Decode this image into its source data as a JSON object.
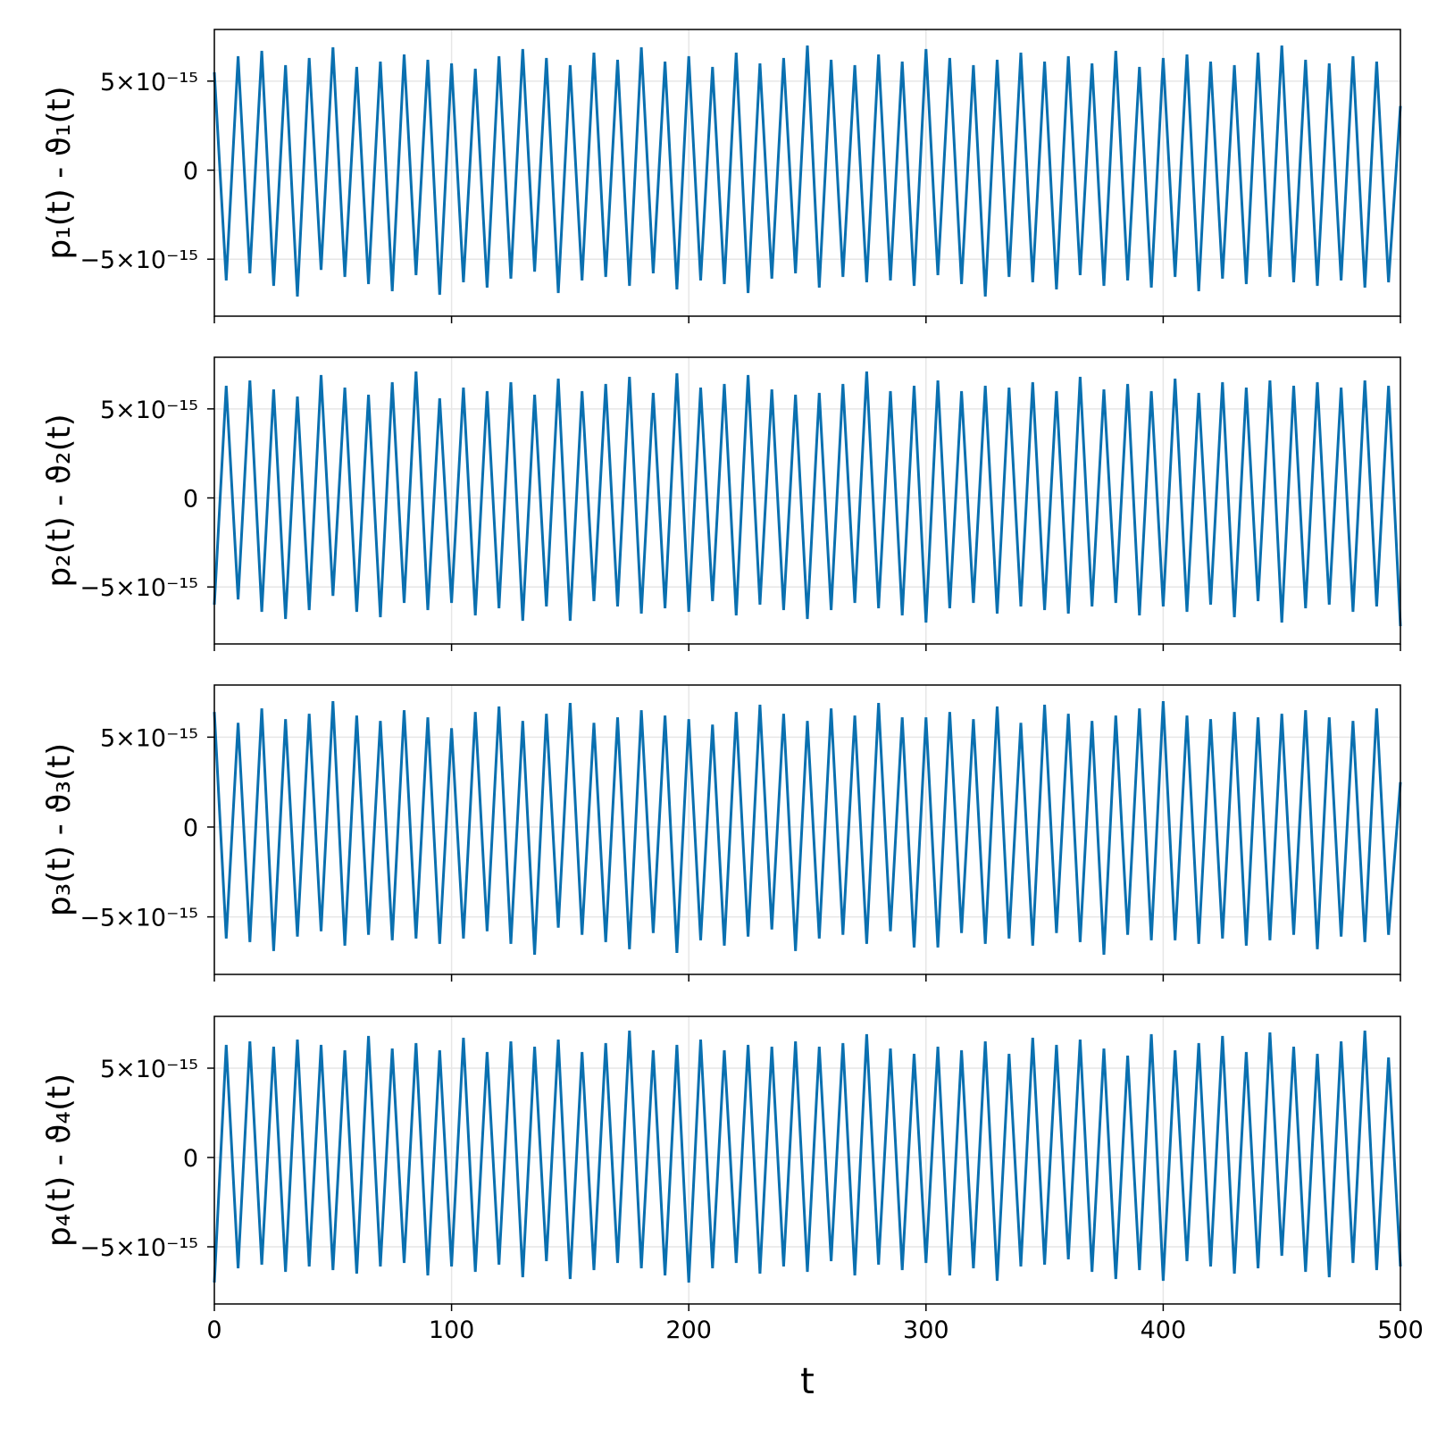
{
  "chart_data": [
    {
      "type": "line",
      "ylabel": "p₁(t) - ϑ₁(t)",
      "color": "#0a70b0",
      "xlim": [
        0,
        500
      ],
      "xticks": [
        0,
        100,
        200,
        300,
        400,
        500
      ],
      "ylim": [
        -8.2e-15,
        7.9e-15
      ],
      "yticks": [
        {
          "value": -5e-15,
          "label": "−5×10⁻¹⁵"
        },
        0,
        {
          "value": 5e-15,
          "label": "5×10⁻¹⁵"
        }
      ],
      "grid": true,
      "x": [
        0,
        5,
        10,
        15,
        20,
        25,
        30,
        35,
        40,
        45,
        50,
        55,
        60,
        65,
        70,
        75,
        80,
        85,
        90,
        95,
        100,
        105,
        110,
        115,
        120,
        125,
        130,
        135,
        140,
        145,
        150,
        155,
        160,
        165,
        170,
        175,
        180,
        185,
        190,
        195,
        200,
        205,
        210,
        215,
        220,
        225,
        230,
        235,
        240,
        245,
        250,
        255,
        260,
        265,
        270,
        275,
        280,
        285,
        290,
        295,
        300,
        305,
        310,
        315,
        320,
        325,
        330,
        335,
        340,
        345,
        350,
        355,
        360,
        365,
        370,
        375,
        380,
        385,
        390,
        395,
        400,
        405,
        410,
        415,
        420,
        425,
        430,
        435,
        440,
        445,
        450,
        455,
        460,
        465,
        470,
        475,
        480,
        485,
        490,
        495,
        500
      ],
      "values": [
        5.5e-15,
        -6.2e-15,
        6.4e-15,
        -5.8e-15,
        6.7e-15,
        -6.5e-15,
        5.9e-15,
        -7.1e-15,
        6.3e-15,
        -5.6e-15,
        6.9e-15,
        -6e-15,
        5.8e-15,
        -6.4e-15,
        6.1e-15,
        -6.8e-15,
        6.5e-15,
        -5.9e-15,
        6.2e-15,
        -7e-15,
        6e-15,
        -6.3e-15,
        5.7e-15,
        -6.6e-15,
        6.4e-15,
        -6.1e-15,
        6.8e-15,
        -5.7e-15,
        6.3e-15,
        -6.9e-15,
        5.9e-15,
        -6.2e-15,
        6.6e-15,
        -6e-15,
        6.2e-15,
        -6.5e-15,
        6.9e-15,
        -5.8e-15,
        6.1e-15,
        -6.7e-15,
        6.4e-15,
        -6.2e-15,
        5.8e-15,
        -6.4e-15,
        6.6e-15,
        -6.9e-15,
        6e-15,
        -6.1e-15,
        6.3e-15,
        -5.8e-15,
        7e-15,
        -6.6e-15,
        6.2e-15,
        -6e-15,
        5.9e-15,
        -6.3e-15,
        6.5e-15,
        -6.2e-15,
        6.1e-15,
        -6.5e-15,
        6.8e-15,
        -5.9e-15,
        6.3e-15,
        -6.4e-15,
        5.9e-15,
        -7.1e-15,
        6.2e-15,
        -6e-15,
        6.6e-15,
        -6.3e-15,
        6.1e-15,
        -6.7e-15,
        6.4e-15,
        -5.9e-15,
        6e-15,
        -6.5e-15,
        6.7e-15,
        -6.2e-15,
        5.8e-15,
        -6.6e-15,
        6.3e-15,
        -6e-15,
        6.5e-15,
        -6.8e-15,
        6.1e-15,
        -6.1e-15,
        5.9e-15,
        -6.4e-15,
        6.6e-15,
        -6e-15,
        7e-15,
        -6.3e-15,
        6.2e-15,
        -6.5e-15,
        6e-15,
        -6.2e-15,
        6.4e-15,
        -6.6e-15,
        6.1e-15,
        -6.3e-15,
        3.6e-15
      ]
    },
    {
      "type": "line",
      "ylabel": "p₂(t) - ϑ₂(t)",
      "color": "#0a70b0",
      "xlim": [
        0,
        500
      ],
      "xticks": [
        0,
        100,
        200,
        300,
        400,
        500
      ],
      "ylim": [
        -8.2e-15,
        7.9e-15
      ],
      "yticks": [
        {
          "value": -5e-15,
          "label": "−5×10⁻¹⁵"
        },
        0,
        {
          "value": 5e-15,
          "label": "5×10⁻¹⁵"
        }
      ],
      "grid": true,
      "x": [
        0,
        5,
        10,
        15,
        20,
        25,
        30,
        35,
        40,
        45,
        50,
        55,
        60,
        65,
        70,
        75,
        80,
        85,
        90,
        95,
        100,
        105,
        110,
        115,
        120,
        125,
        130,
        135,
        140,
        145,
        150,
        155,
        160,
        165,
        170,
        175,
        180,
        185,
        190,
        195,
        200,
        205,
        210,
        215,
        220,
        225,
        230,
        235,
        240,
        245,
        250,
        255,
        260,
        265,
        270,
        275,
        280,
        285,
        290,
        295,
        300,
        305,
        310,
        315,
        320,
        325,
        330,
        335,
        340,
        345,
        350,
        355,
        360,
        365,
        370,
        375,
        380,
        385,
        390,
        395,
        400,
        405,
        410,
        415,
        420,
        425,
        430,
        435,
        440,
        445,
        450,
        455,
        460,
        465,
        470,
        475,
        480,
        485,
        490,
        495,
        500
      ],
      "values": [
        -6e-15,
        6.3e-15,
        -5.7e-15,
        6.6e-15,
        -6.4e-15,
        6.1e-15,
        -6.8e-15,
        5.7e-15,
        -6.3e-15,
        6.9e-15,
        -5.5e-15,
        6.2e-15,
        -6.4e-15,
        5.8e-15,
        -6.7e-15,
        6.5e-15,
        -5.9e-15,
        7.1e-15,
        -6.3e-15,
        5.6e-15,
        -5.9e-15,
        6.2e-15,
        -6.6e-15,
        6e-15,
        -6.2e-15,
        6.5e-15,
        -6.9e-15,
        5.8e-15,
        -6.1e-15,
        6.7e-15,
        -6.9e-15,
        6e-15,
        -5.8e-15,
        6.4e-15,
        -6.1e-15,
        6.8e-15,
        -6.5e-15,
        5.9e-15,
        -6.2e-15,
        7e-15,
        -6.4e-15,
        6.2e-15,
        -5.8e-15,
        6.4e-15,
        -6.6e-15,
        6.9e-15,
        -6e-15,
        6.1e-15,
        -6.3e-15,
        5.8e-15,
        -6.8e-15,
        5.9e-15,
        -6.3e-15,
        6.4e-15,
        -5.9e-15,
        7.1e-15,
        -6.2e-15,
        6e-15,
        -6.6e-15,
        6.3e-15,
        -7e-15,
        6.6e-15,
        -6.2e-15,
        6e-15,
        -5.9e-15,
        6.3e-15,
        -6.5e-15,
        6.2e-15,
        -6.1e-15,
        6.5e-15,
        -6.3e-15,
        6e-15,
        -6.5e-15,
        6.8e-15,
        -6.1e-15,
        6.1e-15,
        -5.9e-15,
        6.4e-15,
        -6.6e-15,
        6e-15,
        -6.1e-15,
        6.7e-15,
        -6.4e-15,
        5.9e-15,
        -6e-15,
        6.5e-15,
        -6.7e-15,
        6.2e-15,
        -5.8e-15,
        6.6e-15,
        -7e-15,
        6.3e-15,
        -6.2e-15,
        6.5e-15,
        -6e-15,
        6.2e-15,
        -6.4e-15,
        6.6e-15,
        -6.1e-15,
        6.3e-15,
        -7.2e-15
      ]
    },
    {
      "type": "line",
      "ylabel": "p₃(t) - ϑ₃(t)",
      "color": "#0a70b0",
      "xlim": [
        0,
        500
      ],
      "xticks": [
        0,
        100,
        200,
        300,
        400,
        500
      ],
      "ylim": [
        -8.2e-15,
        7.9e-15
      ],
      "yticks": [
        {
          "value": -5e-15,
          "label": "−5×10⁻¹⁵"
        },
        0,
        {
          "value": 5e-15,
          "label": "5×10⁻¹⁵"
        }
      ],
      "grid": true,
      "x": [
        0,
        5,
        10,
        15,
        20,
        25,
        30,
        35,
        40,
        45,
        50,
        55,
        60,
        65,
        70,
        75,
        80,
        85,
        90,
        95,
        100,
        105,
        110,
        115,
        120,
        125,
        130,
        135,
        140,
        145,
        150,
        155,
        160,
        165,
        170,
        175,
        180,
        185,
        190,
        195,
        200,
        205,
        210,
        215,
        220,
        225,
        230,
        235,
        240,
        245,
        250,
        255,
        260,
        265,
        270,
        275,
        280,
        285,
        290,
        295,
        300,
        305,
        310,
        315,
        320,
        325,
        330,
        335,
        340,
        345,
        350,
        355,
        360,
        365,
        370,
        375,
        380,
        385,
        390,
        395,
        400,
        405,
        410,
        415,
        420,
        425,
        430,
        435,
        440,
        445,
        450,
        455,
        460,
        465,
        470,
        475,
        480,
        485,
        490,
        495,
        500
      ],
      "values": [
        6.4e-15,
        -6.2e-15,
        5.8e-15,
        -6.4e-15,
        6.6e-15,
        -6.9e-15,
        6e-15,
        -6.1e-15,
        6.3e-15,
        -5.8e-15,
        7e-15,
        -6.6e-15,
        6.2e-15,
        -6e-15,
        5.9e-15,
        -6.3e-15,
        6.5e-15,
        -6.2e-15,
        6.1e-15,
        -6.5e-15,
        5.5e-15,
        -6.2e-15,
        6.4e-15,
        -5.8e-15,
        6.7e-15,
        -6.5e-15,
        5.9e-15,
        -7.1e-15,
        6.3e-15,
        -5.6e-15,
        6.9e-15,
        -6e-15,
        5.8e-15,
        -6.4e-15,
        6.1e-15,
        -6.8e-15,
        6.5e-15,
        -5.9e-15,
        6.2e-15,
        -7e-15,
        6e-15,
        -6.3e-15,
        5.7e-15,
        -6.6e-15,
        6.4e-15,
        -6.1e-15,
        6.8e-15,
        -5.7e-15,
        6.3e-15,
        -6.9e-15,
        5.9e-15,
        -6.2e-15,
        6.6e-15,
        -6e-15,
        6.2e-15,
        -6.5e-15,
        6.9e-15,
        -5.8e-15,
        6.1e-15,
        -6.7e-15,
        6.1e-15,
        -6.7e-15,
        6.4e-15,
        -5.9e-15,
        6e-15,
        -6.5e-15,
        6.7e-15,
        -6.2e-15,
        5.8e-15,
        -6.6e-15,
        6.8e-15,
        -5.9e-15,
        6.3e-15,
        -6.4e-15,
        5.9e-15,
        -7.1e-15,
        6.2e-15,
        -6e-15,
        6.6e-15,
        -6.3e-15,
        7e-15,
        -6.3e-15,
        6.2e-15,
        -6.5e-15,
        6e-15,
        -6.2e-15,
        6.4e-15,
        -6.6e-15,
        6.1e-15,
        -6.3e-15,
        6.3e-15,
        -6e-15,
        6.5e-15,
        -6.8e-15,
        6.1e-15,
        -6.1e-15,
        5.9e-15,
        -6.4e-15,
        6.6e-15,
        -6e-15,
        2.5e-15
      ]
    },
    {
      "type": "line",
      "ylabel": "p₄(t) - ϑ₄(t)",
      "xlabel": "t",
      "color": "#0a70b0",
      "xlim": [
        0,
        500
      ],
      "xticks": [
        0,
        100,
        200,
        300,
        400,
        500
      ],
      "ylim": [
        -8.2e-15,
        7.9e-15
      ],
      "yticks": [
        {
          "value": -5e-15,
          "label": "−5×10⁻¹⁵"
        },
        0,
        {
          "value": 5e-15,
          "label": "5×10⁻¹⁵"
        }
      ],
      "grid": true,
      "x": [
        0,
        5,
        10,
        15,
        20,
        25,
        30,
        35,
        40,
        45,
        50,
        55,
        60,
        65,
        70,
        75,
        80,
        85,
        90,
        95,
        100,
        105,
        110,
        115,
        120,
        125,
        130,
        135,
        140,
        145,
        150,
        155,
        160,
        165,
        170,
        175,
        180,
        185,
        190,
        195,
        200,
        205,
        210,
        215,
        220,
        225,
        230,
        235,
        240,
        245,
        250,
        255,
        260,
        265,
        270,
        275,
        280,
        285,
        290,
        295,
        300,
        305,
        310,
        315,
        320,
        325,
        330,
        335,
        340,
        345,
        350,
        355,
        360,
        365,
        370,
        375,
        380,
        385,
        390,
        395,
        400,
        405,
        410,
        415,
        420,
        425,
        430,
        435,
        440,
        445,
        450,
        455,
        460,
        465,
        470,
        475,
        480,
        485,
        490,
        495,
        500
      ],
      "values": [
        -7e-15,
        6.3e-15,
        -6.2e-15,
        6.5e-15,
        -6e-15,
        6.2e-15,
        -6.4e-15,
        6.6e-15,
        -6.1e-15,
        6.3e-15,
        -6.3e-15,
        6e-15,
        -6.5e-15,
        6.8e-15,
        -6.1e-15,
        6.1e-15,
        -5.9e-15,
        6.4e-15,
        -6.6e-15,
        6e-15,
        -6.1e-15,
        6.7e-15,
        -6.4e-15,
        5.9e-15,
        -6e-15,
        6.5e-15,
        -6.7e-15,
        6.2e-15,
        -5.8e-15,
        6.6e-15,
        -6.8e-15,
        5.9e-15,
        -6.3e-15,
        6.4e-15,
        -5.9e-15,
        7.1e-15,
        -6.2e-15,
        6e-15,
        -6.6e-15,
        6.3e-15,
        -7e-15,
        6.6e-15,
        -6.2e-15,
        6e-15,
        -5.9e-15,
        6.3e-15,
        -6.5e-15,
        6.2e-15,
        -6.1e-15,
        6.5e-15,
        -6.4e-15,
        6.2e-15,
        -5.8e-15,
        6.4e-15,
        -6.6e-15,
        6.9e-15,
        -6e-15,
        6.1e-15,
        -6.3e-15,
        5.8e-15,
        -5.9e-15,
        6.2e-15,
        -6.6e-15,
        6e-15,
        -6.2e-15,
        6.5e-15,
        -6.9e-15,
        5.8e-15,
        -6.1e-15,
        6.7e-15,
        -6e-15,
        6.3e-15,
        -5.7e-15,
        6.6e-15,
        -6.4e-15,
        6.1e-15,
        -6.8e-15,
        5.7e-15,
        -6.3e-15,
        6.9e-15,
        -6.9e-15,
        6e-15,
        -5.8e-15,
        6.4e-15,
        -6.1e-15,
        6.8e-15,
        -6.5e-15,
        5.9e-15,
        -6.2e-15,
        7e-15,
        -5.5e-15,
        6.2e-15,
        -6.4e-15,
        5.8e-15,
        -6.7e-15,
        6.5e-15,
        -5.9e-15,
        7.1e-15,
        -6.3e-15,
        5.6e-15,
        -6.1e-15
      ]
    }
  ]
}
